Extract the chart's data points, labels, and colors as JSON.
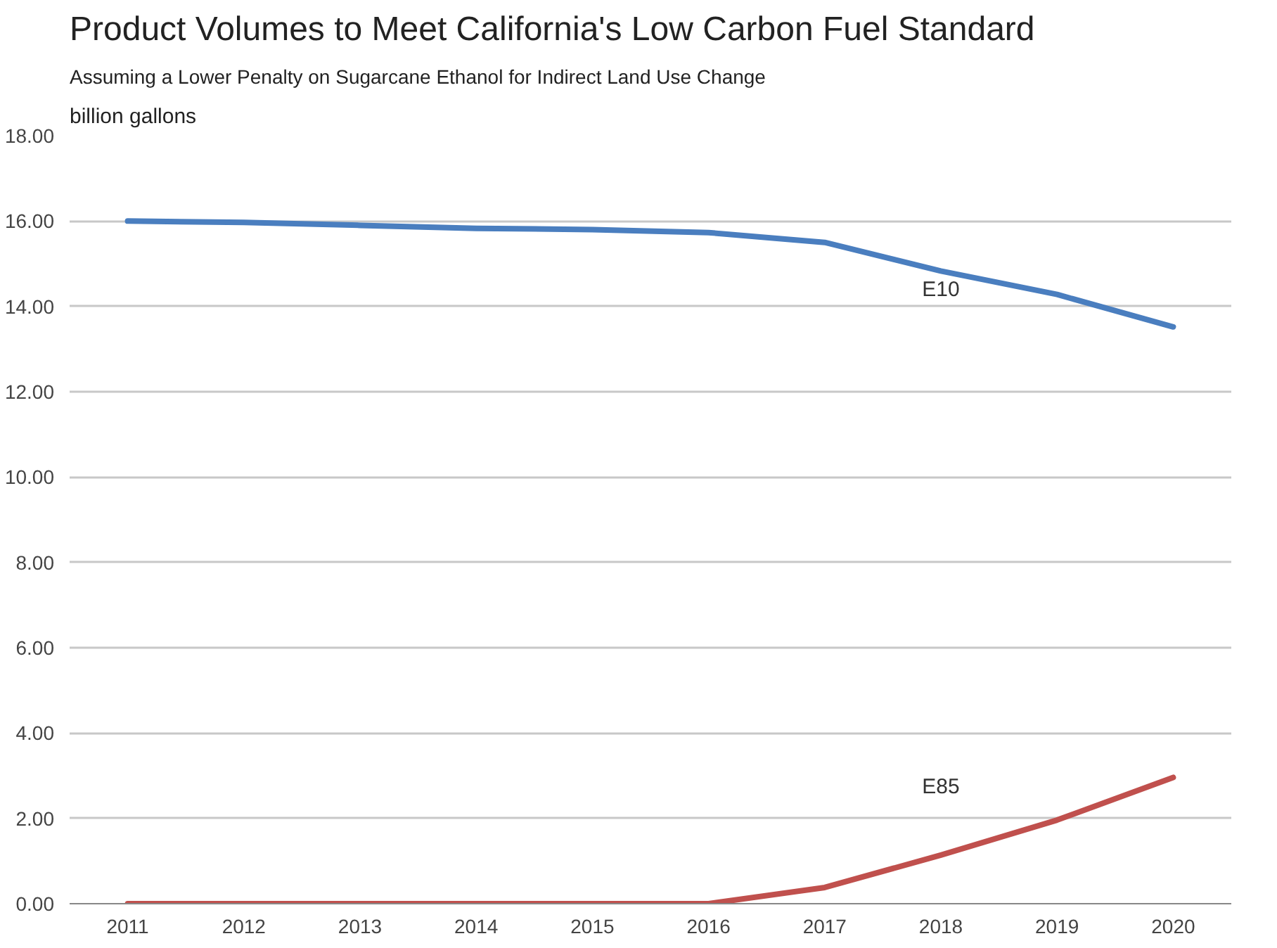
{
  "chart_data": {
    "type": "line",
    "title": "Product Volumes to Meet California's Low Carbon Fuel Standard",
    "subtitle": "Assuming a Lower Penalty on Sugarcane Ethanol for Indirect Land Use Change",
    "ylabel": "billion gallons",
    "categories": [
      "2011",
      "2012",
      "2013",
      "2014",
      "2015",
      "2016",
      "2017",
      "2018",
      "2019",
      "2020"
    ],
    "series": [
      {
        "name": "E10",
        "color": "#4a7ebf",
        "values": [
          16.0,
          15.97,
          15.9,
          15.83,
          15.8,
          15.73,
          15.5,
          14.83,
          14.28,
          13.52
        ]
      },
      {
        "name": "E85",
        "color": "#c0504d",
        "values": [
          0,
          0,
          0,
          0,
          0,
          0,
          0.38,
          1.14,
          1.96,
          2.96
        ]
      }
    ],
    "ylim": [
      0,
      18
    ],
    "yticks": [
      {
        "value": 0,
        "label": "0.00"
      },
      {
        "value": 2,
        "label": "2.00"
      },
      {
        "value": 4,
        "label": "4.00"
      },
      {
        "value": 6,
        "label": "6.00"
      },
      {
        "value": 8,
        "label": "8.00"
      },
      {
        "value": 10,
        "label": "10.00"
      },
      {
        "value": 12,
        "label": "12.00"
      },
      {
        "value": 14,
        "label": "14.00"
      },
      {
        "value": 16,
        "label": "16.00"
      },
      {
        "value": 18,
        "label": "18.00"
      }
    ],
    "grid": "y",
    "marker": "none",
    "line_style": "solid"
  }
}
